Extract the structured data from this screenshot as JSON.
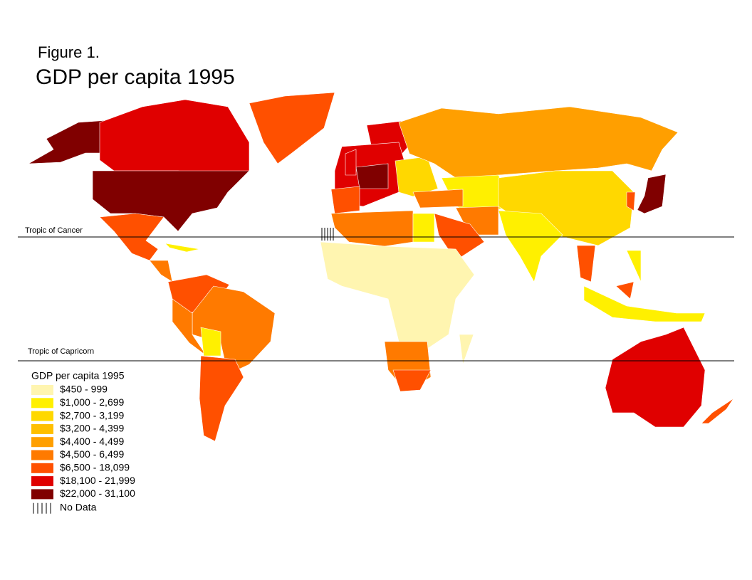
{
  "figure_label": "Figure 1.",
  "title": "GDP per capita 1995",
  "tropics": {
    "cancer": "Tropic of Cancer",
    "capricorn": "Tropic of Capricorn"
  },
  "legend": {
    "title": "GDP per capita 1995",
    "items": [
      {
        "label": "$450 - 999",
        "color": "#fff5b0"
      },
      {
        "label": "$1,000 - 2,699",
        "color": "#fff000"
      },
      {
        "label": "$2,700 - 3,199",
        "color": "#ffd800"
      },
      {
        "label": "$3,200 - 4,399",
        "color": "#ffbf00"
      },
      {
        "label": "$4,400 - 4,499",
        "color": "#ff9f00"
      },
      {
        "label": "$4,500 - 6,499",
        "color": "#ff7a00"
      },
      {
        "label": "$6,500 - 18,099",
        "color": "#ff5000"
      },
      {
        "label": "$18,100 - 21,999",
        "color": "#e00000"
      },
      {
        "label": "$22,000 - 31,100",
        "color": "#800000"
      }
    ],
    "no_data": "No Data"
  }
}
